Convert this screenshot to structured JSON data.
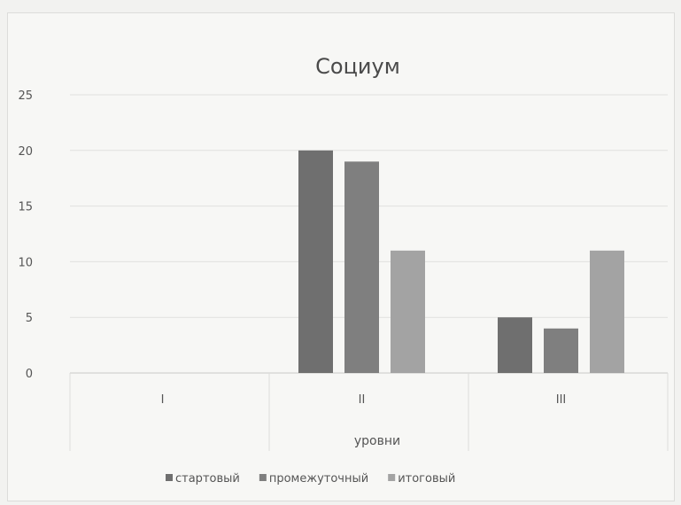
{
  "chart_data": {
    "type": "bar",
    "title": "Социум",
    "xlabel": "уровни",
    "ylabel": "",
    "ylim": [
      0,
      25
    ],
    "yticks": [
      0,
      5,
      10,
      15,
      20,
      25
    ],
    "categories": [
      "I",
      "II",
      "III"
    ],
    "series": [
      {
        "name": "стартовый",
        "values": [
          0,
          20,
          5
        ],
        "color": "#6f6f6f"
      },
      {
        "name": "промежуточный",
        "values": [
          0,
          19,
          4
        ],
        "color": "#7f7f7f"
      },
      {
        "name": "итоговый",
        "values": [
          0,
          11,
          11
        ],
        "color": "#a3a3a3"
      }
    ],
    "grid": true,
    "legend": "bottom"
  }
}
